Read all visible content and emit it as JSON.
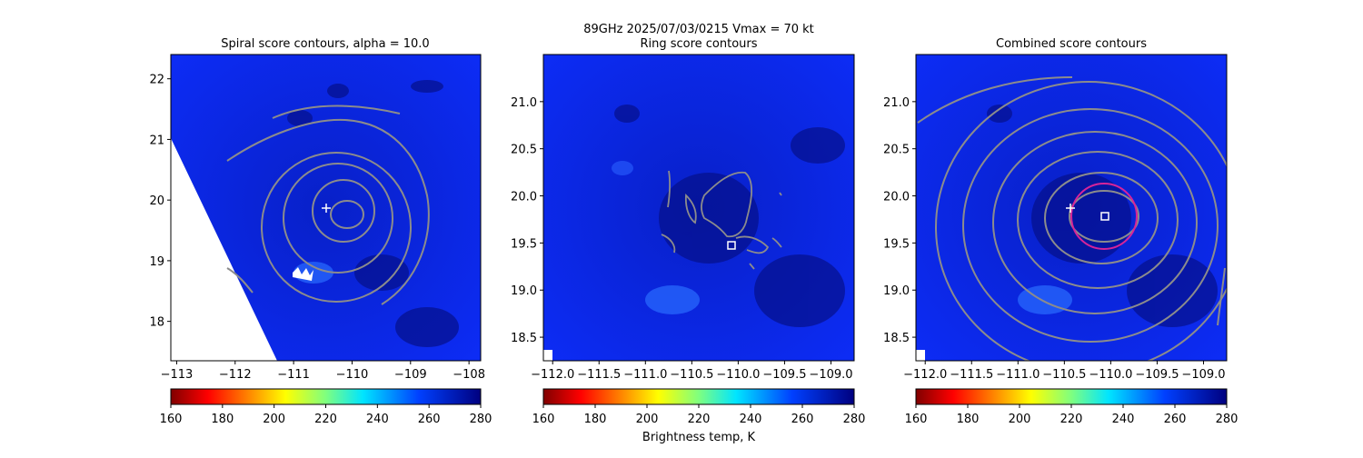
{
  "suptitle": {
    "line1": "89GHz  2025/07/03/0215    Vmax = 70 kt",
    "line2": "Ring score contours"
  },
  "colorbar_label": "Brightness temp, K",
  "colormap": "jet",
  "colors": {
    "background_field": "#0a1ef0",
    "contour": "#8c8c8c",
    "center_marker": "#ffffff",
    "ring_circle": "#d6249a"
  },
  "chart_data": [
    {
      "type": "heatmap",
      "title": "Spiral score contours, alpha = 10.0",
      "xlim": [
        -113.1,
        -107.8
      ],
      "ylim": [
        17.35,
        22.4
      ],
      "xticks": [
        -113,
        -112,
        -111,
        -110,
        -109,
        -108
      ],
      "xtick_labels": [
        "−113",
        "−112",
        "−111",
        "−110",
        "−109",
        "−108"
      ],
      "yticks": [
        18,
        19,
        20,
        21,
        22
      ],
      "ytick_labels": [
        "18",
        "19",
        "20",
        "21",
        "22"
      ],
      "contour_levels": 6,
      "center_marker": {
        "shape": "plus",
        "lon": -110.5,
        "lat": 19.87
      },
      "colorbar": {
        "range": [
          160,
          280
        ],
        "ticks": [
          "160",
          "180",
          "200",
          "220",
          "240",
          "260",
          "280"
        ]
      }
    },
    {
      "type": "heatmap",
      "title": "Ring score contours",
      "xlim": [
        -112.1,
        -108.75
      ],
      "ylim": [
        18.25,
        21.5
      ],
      "xticks": [
        -112.0,
        -111.5,
        -111.0,
        -110.5,
        -110.0,
        -109.5,
        -109.0
      ],
      "xtick_labels": [
        "−112.0",
        "−111.5",
        "−111.0",
        "−110.5",
        "−110.0",
        "−109.5",
        "−109.0"
      ],
      "yticks": [
        18.5,
        19.0,
        19.5,
        20.0,
        20.5,
        21.0
      ],
      "ytick_labels": [
        "18.5",
        "19.0",
        "19.5",
        "20.0",
        "20.5",
        "21.0"
      ],
      "center_marker": {
        "shape": "square",
        "lon": -110.08,
        "lat": 19.47
      },
      "colorbar": {
        "range": [
          160,
          280
        ],
        "ticks": [
          "160",
          "180",
          "200",
          "220",
          "240",
          "260",
          "280"
        ]
      }
    },
    {
      "type": "heatmap",
      "title": "Combined score contours",
      "xlim": [
        -112.1,
        -108.75
      ],
      "ylim": [
        18.25,
        21.5
      ],
      "xticks": [
        -112.0,
        -111.5,
        -111.0,
        -110.5,
        -110.0,
        -109.5,
        -109.0
      ],
      "xtick_labels": [
        "−112.0",
        "−111.5",
        "−111.0",
        "−110.5",
        "−110.0",
        "−109.5",
        "−109.0"
      ],
      "yticks": [
        18.5,
        19.0,
        19.5,
        20.0,
        20.5,
        21.0
      ],
      "ytick_labels": [
        "18.5",
        "19.0",
        "19.5",
        "20.0",
        "20.5",
        "21.0"
      ],
      "contour_levels": 8,
      "center_marker": {
        "shape": "square",
        "lon": -110.1,
        "lat": 19.77
      },
      "first_guess_marker": {
        "shape": "plus",
        "lon": -110.48,
        "lat": 19.87
      },
      "ring": {
        "lon": -110.1,
        "lat": 19.8,
        "radius_deg": 0.32
      },
      "colorbar": {
        "range": [
          160,
          280
        ],
        "ticks": [
          "160",
          "180",
          "200",
          "220",
          "240",
          "260",
          "280"
        ]
      }
    }
  ]
}
